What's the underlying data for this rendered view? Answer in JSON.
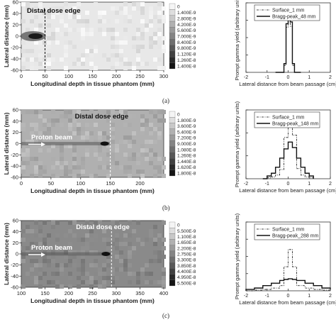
{
  "panel_labels": [
    "(a)",
    "(b)",
    "(c)"
  ],
  "chart_data": [
    {
      "type": "heatmap",
      "panel": "(a)",
      "xlabel": "Longitudinal depth in tissue phantom (mm)",
      "ylabel": "Lateral distance (mm)",
      "xlim": [
        0,
        300
      ],
      "ylim": [
        -60,
        60
      ],
      "x_ticks": [
        "0",
        "50",
        "100",
        "150",
        "200",
        "250",
        "300"
      ],
      "y_ticks": [
        "60",
        "40",
        "20",
        "0",
        "-20",
        "-40",
        "-60"
      ],
      "annotations": [
        "Distal dose edge"
      ],
      "dose_edge_x": 50,
      "background": "#e8e8e8",
      "colorbar": [
        "0",
        "1.400E-9",
        "2.800E-9",
        "4.200E-9",
        "5.600E-9",
        "7.000E-9",
        "8.400E-9",
        "9.800E-9",
        "1.120E-8",
        "1.260E-8",
        "1.400E-8"
      ]
    },
    {
      "type": "line",
      "panel": "(a)",
      "xlabel": "Lateral distance from beam passage (cm)",
      "ylabel": "Prompt gamma yield (arbitrary units)",
      "xlim": [
        -2,
        2
      ],
      "ylim": [
        0,
        2000
      ],
      "x_ticks": [
        "-2",
        "-1",
        "0",
        "1",
        "2"
      ],
      "y_ticks": [
        "0",
        "500",
        "1000",
        "1500",
        "2000"
      ],
      "x": [
        -0.6,
        -0.5,
        -0.4,
        -0.3,
        -0.2,
        -0.1,
        0,
        0.1,
        0.2,
        0.3,
        0.4,
        0.5,
        0.6
      ],
      "series": [
        {
          "name": "Surface_1 mm",
          "style": "dash-dot",
          "values": [
            0,
            0,
            0,
            0,
            200,
            1300,
            1500,
            1320,
            200,
            0,
            0,
            0,
            0
          ]
        },
        {
          "name": "Bragg-peak_48 mm",
          "style": "solid",
          "values": [
            0,
            0,
            0,
            0,
            250,
            1400,
            1550,
            1450,
            250,
            0,
            0,
            0,
            0
          ]
        }
      ]
    },
    {
      "type": "heatmap",
      "panel": "(b)",
      "xlabel": "Longitudinal depth in tissue phantom (mm)",
      "ylabel": "Lateral distance (mm)",
      "xlim": [
        0,
        240
      ],
      "ylim": [
        -60,
        60
      ],
      "x_ticks": [
        "0",
        "50",
        "100",
        "150",
        "200"
      ],
      "y_ticks": [
        "60",
        "40",
        "20",
        "0",
        "-20",
        "-40",
        "-60"
      ],
      "annotations": [
        "Distal dose edge",
        "Proton beam"
      ],
      "dose_edge_x": 150,
      "background": "#b0b0b0",
      "colorbar": [
        "0",
        "1.800E-9",
        "3.600E-9",
        "5.400E-9",
        "7.200E-9",
        "9.000E-9",
        "1.080E-8",
        "1.260E-8",
        "1.440E-8",
        "1.620E-8",
        "1.800E-8"
      ]
    },
    {
      "type": "line",
      "panel": "(b)",
      "xlabel": "Lateral distance from beam passage (cm)",
      "ylabel": "Prompt gamma yield (arbitrary units)",
      "xlim": [
        -2,
        2
      ],
      "ylim": [
        0,
        1500
      ],
      "x_ticks": [
        "-2",
        "-1",
        "0",
        "1",
        "2"
      ],
      "y_ticks": [
        "0",
        "500",
        "1000",
        "1500"
      ],
      "x": [
        -1.2,
        -1.0,
        -0.8,
        -0.6,
        -0.4,
        -0.2,
        0,
        0.2,
        0.4,
        0.6,
        0.8,
        1.0,
        1.2
      ],
      "series": [
        {
          "name": "Surface_1 mm",
          "style": "dash-dot",
          "values": [
            0,
            20,
            40,
            80,
            200,
            900,
            1150,
            950,
            220,
            80,
            40,
            20,
            0
          ]
        },
        {
          "name": "Bragg-peak_148 mm",
          "style": "solid",
          "values": [
            0,
            60,
            120,
            250,
            450,
            650,
            800,
            680,
            450,
            250,
            120,
            60,
            0
          ]
        }
      ]
    },
    {
      "type": "heatmap",
      "panel": "(c)",
      "xlabel": "Longitudinal depth in tissue phantom (mm)",
      "ylabel": "Lateral distance (mm)",
      "xlim": [
        100,
        400
      ],
      "ylim": [
        -60,
        60
      ],
      "x_ticks": [
        "100",
        "150",
        "200",
        "250",
        "300",
        "350",
        "400"
      ],
      "y_ticks": [
        "60",
        "40",
        "20",
        "0",
        "-20",
        "-40",
        "-60"
      ],
      "annotations": [
        "Distal dose edge",
        "Proton beam"
      ],
      "dose_edge_x": 290,
      "background": "#8a8a8a",
      "colorbar": [
        "0",
        "5.500E-9",
        "1.100E-8",
        "1.650E-8",
        "2.200E-8",
        "2.750E-8",
        "3.300E-8",
        "3.850E-8",
        "4.400E-8",
        "4.950E-8",
        "5.500E-8"
      ]
    },
    {
      "type": "line",
      "panel": "(c)",
      "xlabel": "Lateral distance from beam passage (cm)",
      "ylabel": "Prompt gamma yield (arbitrary units)",
      "xlim": [
        -2,
        2
      ],
      "ylim": [
        0,
        2000
      ],
      "x_ticks": [
        "-2",
        "-1",
        "0",
        "1",
        "2"
      ],
      "y_ticks": [
        "0",
        "500",
        "1000",
        "1500",
        "2000"
      ],
      "x": [
        -2.0,
        -1.6,
        -1.2,
        -0.8,
        -0.4,
        -0.2,
        0,
        0.2,
        0.4,
        0.8,
        1.2,
        1.6,
        2.0
      ],
      "series": [
        {
          "name": "Surface_1 mm",
          "style": "dash-dot",
          "values": [
            0,
            20,
            40,
            80,
            150,
            700,
            1200,
            700,
            150,
            80,
            40,
            20,
            0
          ]
        },
        {
          "name": "Bragg-peak_288 mm",
          "style": "solid",
          "values": [
            40,
            80,
            150,
            220,
            300,
            330,
            350,
            330,
            300,
            220,
            150,
            80,
            40
          ]
        }
      ]
    }
  ]
}
